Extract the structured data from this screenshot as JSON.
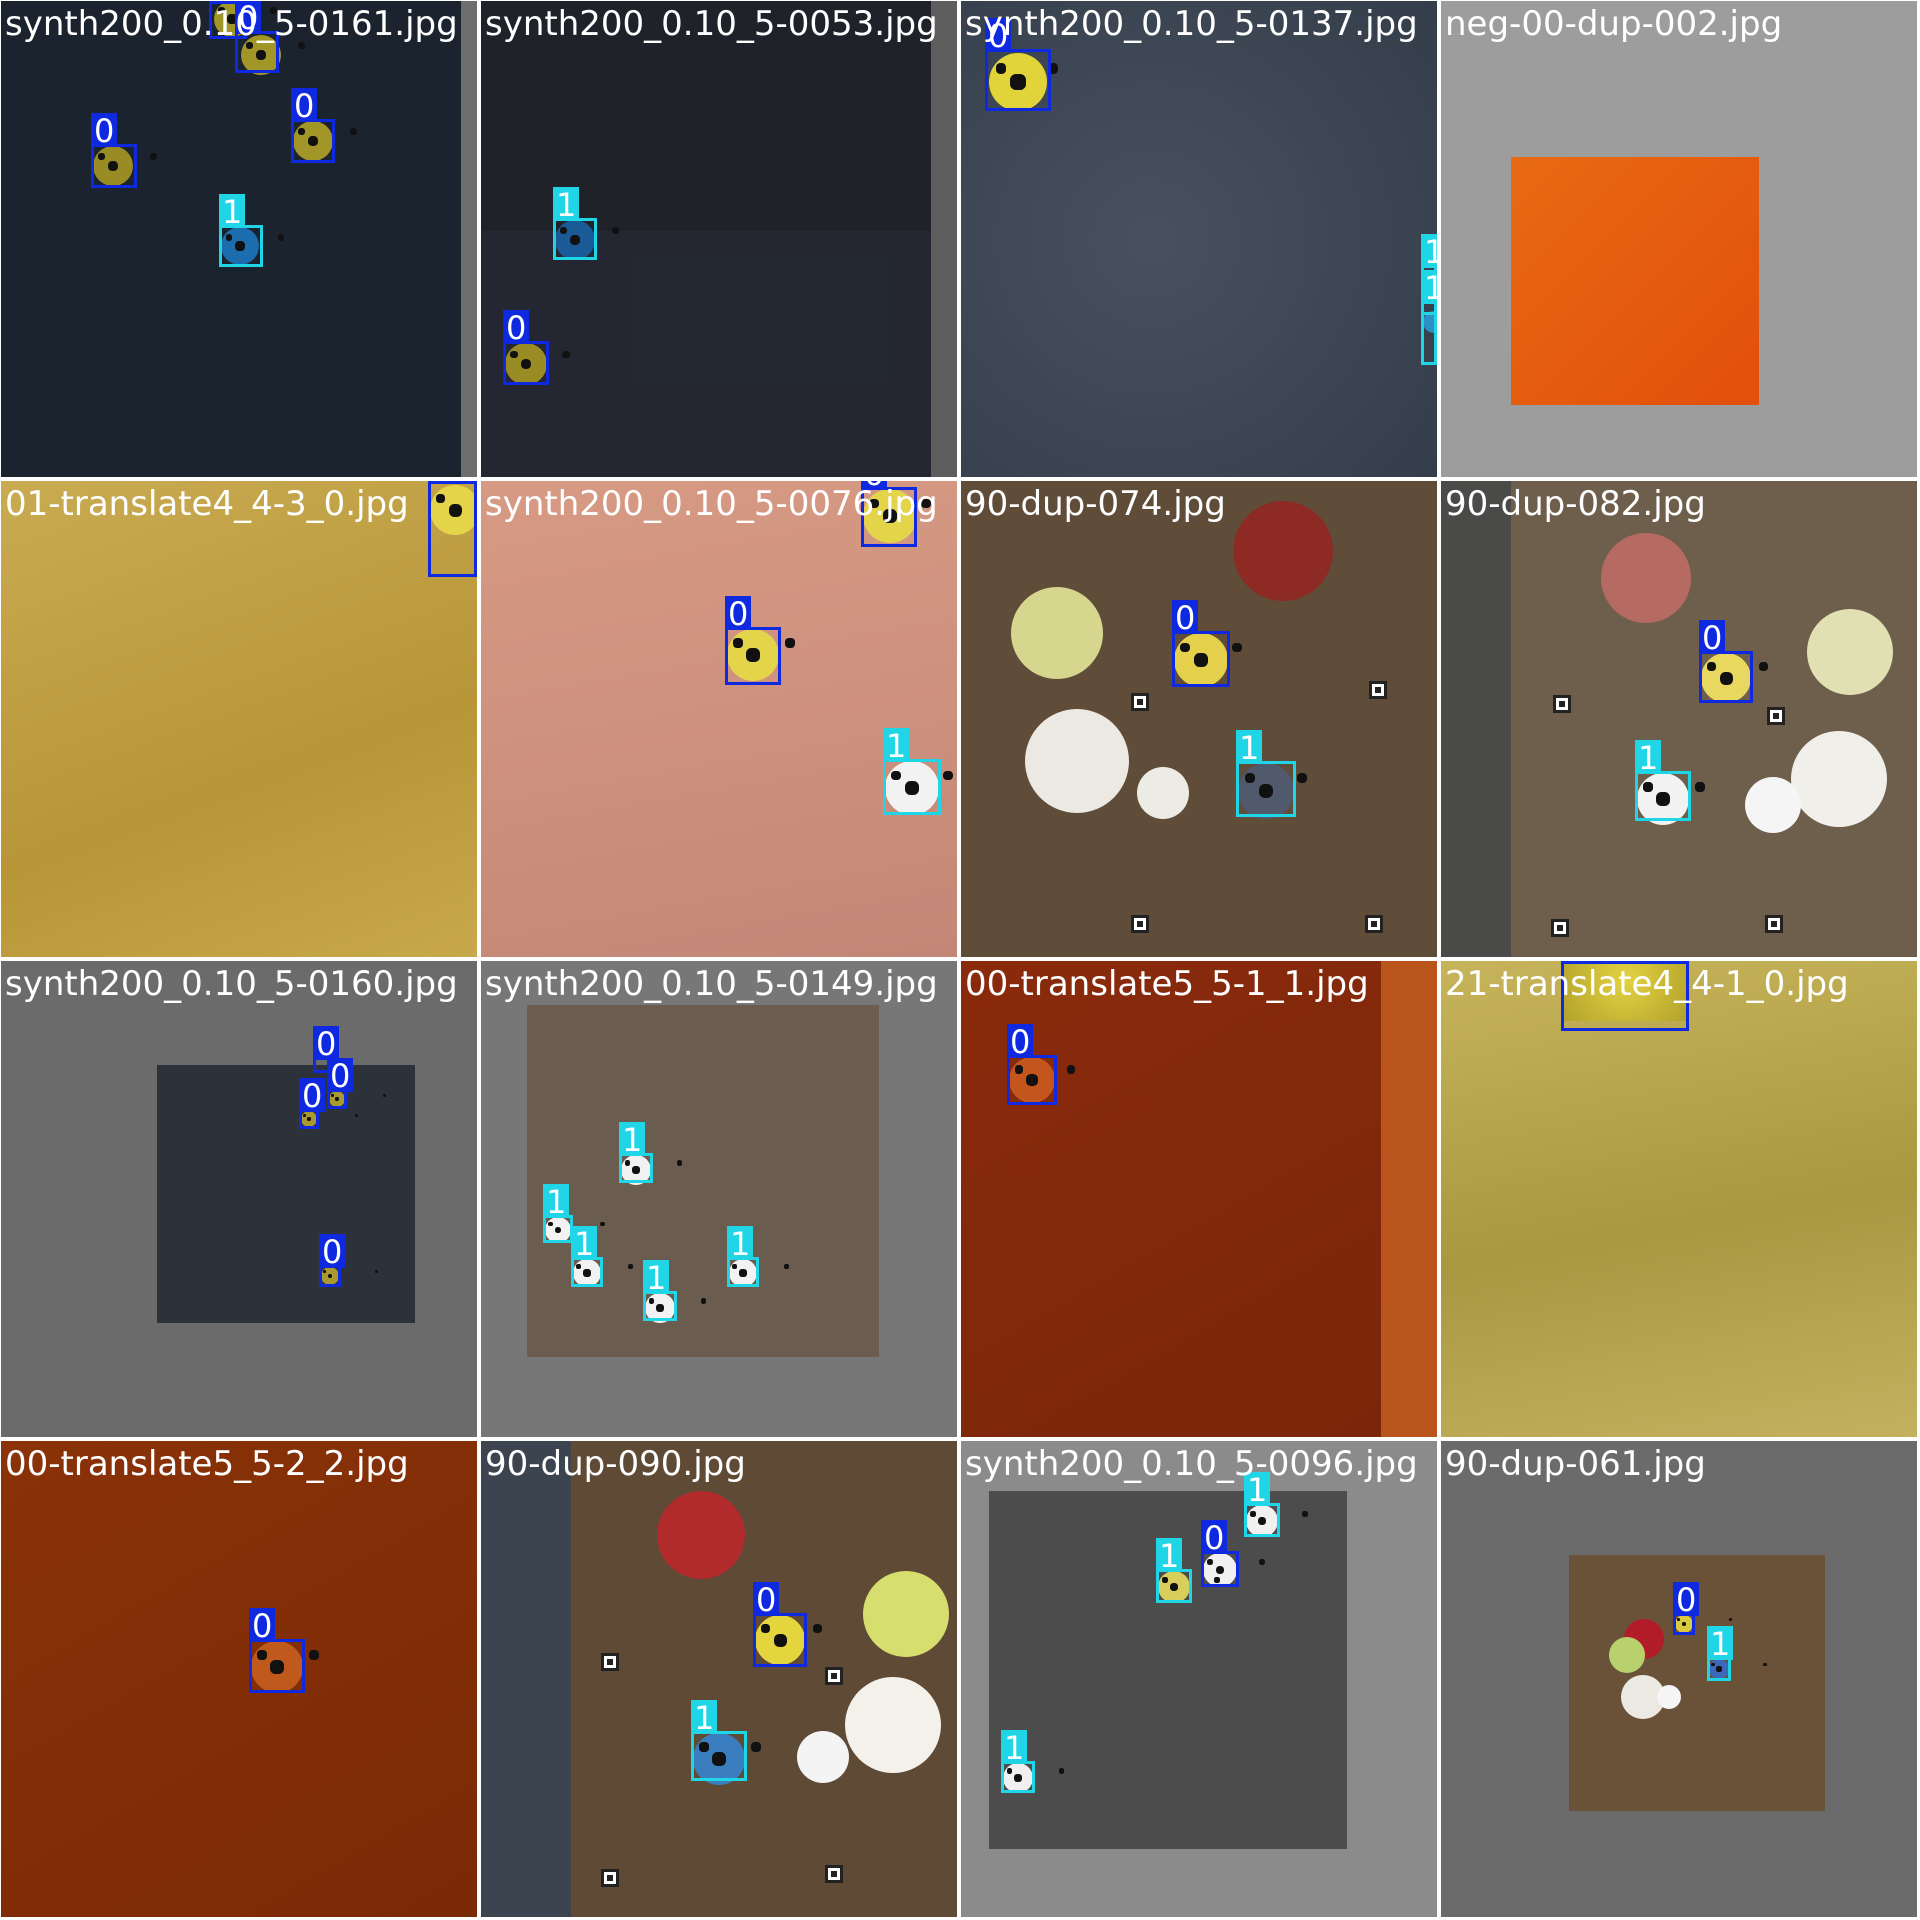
{
  "colors": {
    "class_0": "#0f29e0",
    "class_1": "#1fd5e6",
    "grid_line": "#ffffff",
    "label_text": "#ffffff"
  },
  "tiles": [
    {
      "label": "synth200_0.10_5-0161.jpg",
      "classes": [
        "0",
        "0",
        "0",
        "0",
        "1"
      ]
    },
    {
      "label": "synth200_0.10_5-0053.jpg",
      "classes": [
        "1",
        "0"
      ]
    },
    {
      "label": "synth200_0.10_5-0137.jpg",
      "classes": [
        "0",
        "1",
        "1"
      ]
    },
    {
      "label": "neg-00-dup-002.jpg",
      "classes": []
    },
    {
      "label": "01-translate4_4-3_0.jpg",
      "classes": [
        "0"
      ]
    },
    {
      "label": "synth200_0.10_5-0076.jpg",
      "classes": [
        "0",
        "0",
        "1"
      ]
    },
    {
      "label": "90-dup-074.jpg",
      "classes": [
        "0",
        "1"
      ]
    },
    {
      "label": "90-dup-082.jpg",
      "classes": [
        "0",
        "1"
      ]
    },
    {
      "label": "synth200_0.10_5-0160.jpg",
      "classes": [
        "0",
        "0",
        "0",
        "0"
      ]
    },
    {
      "label": "synth200_0.10_5-0149.jpg",
      "classes": [
        "1",
        "1",
        "1",
        "1",
        "1"
      ]
    },
    {
      "label": "00-translate5_5-1_1.jpg",
      "classes": [
        "0"
      ]
    },
    {
      "label": "21-translate4_4-1_0.jpg",
      "classes": [
        "0"
      ]
    },
    {
      "label": "00-translate5_5-2_2.jpg",
      "classes": [
        "0"
      ]
    },
    {
      "label": "90-dup-090.jpg",
      "classes": [
        "0",
        "1"
      ]
    },
    {
      "label": "synth200_0.10_5-0096.jpg",
      "classes": [
        "1",
        "0",
        "1",
        "1"
      ]
    },
    {
      "label": "90-dup-061.jpg",
      "classes": [
        "0",
        "1"
      ]
    }
  ]
}
